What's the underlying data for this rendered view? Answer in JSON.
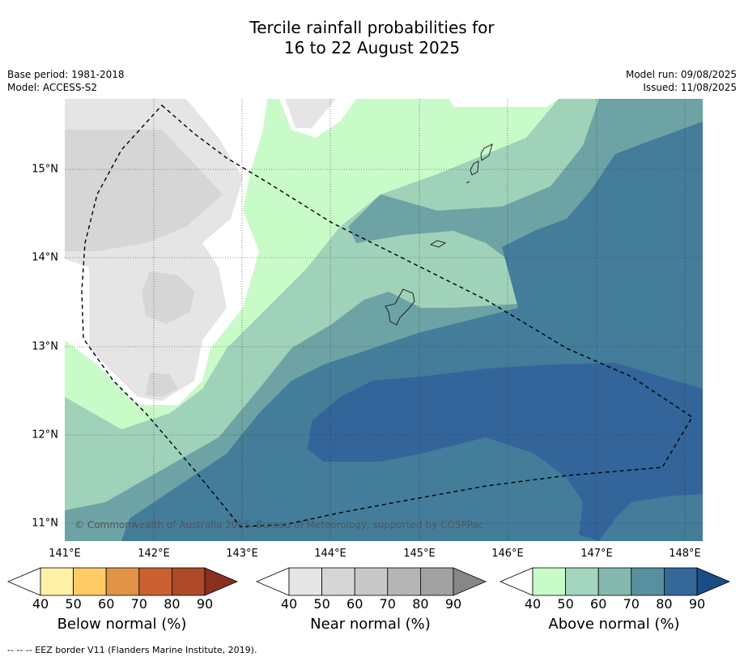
{
  "title": {
    "line1": "Tercile rainfall probabilities for",
    "line2": "16 to 22 August 2025"
  },
  "meta": {
    "base_period": "Base period: 1981-2018",
    "model": "Model: ACCESS-S2",
    "model_run": "Model run: 09/08/2025",
    "issued": "Issued: 11/08/2025"
  },
  "map": {
    "lon_ticks": [
      "141°E",
      "142°E",
      "143°E",
      "144°E",
      "145°E",
      "146°E",
      "147°E",
      "148°E"
    ],
    "lat_ticks": [
      "15°N",
      "14°N",
      "13°N",
      "12°N",
      "11°N"
    ],
    "copyright": "© Commonwealth of Australia 2025, Bureau of Meteorology, supported by COSPPac"
  },
  "colorbars": [
    {
      "name": "below",
      "title": "Below normal (%)",
      "ticks": [
        "40",
        "50",
        "60",
        "70",
        "80",
        "90"
      ],
      "colors": [
        "#ffffff",
        "#fff0a6",
        "#fecb67",
        "#e09345",
        "#cb6132",
        "#ae4a27",
        "#8b2f1f"
      ]
    },
    {
      "name": "near",
      "title": "Near normal (%)",
      "ticks": [
        "40",
        "50",
        "60",
        "70",
        "80",
        "90"
      ],
      "colors": [
        "#ffffff",
        "#e5e5e5",
        "#d6d6d6",
        "#c8c8c8",
        "#b5b5b5",
        "#a1a1a1",
        "#878787"
      ]
    },
    {
      "name": "above",
      "title": "Above normal (%)",
      "ticks": [
        "40",
        "50",
        "60",
        "70",
        "80",
        "90"
      ],
      "colors": [
        "#ffffff",
        "#c9fbc9",
        "#a4d6bf",
        "#85b8af",
        "#5990a0",
        "#336898",
        "#1a4c85"
      ]
    }
  ],
  "footnote": "--  --  -- EEZ border V11 (Flanders Marine Institute, 2019)."
}
